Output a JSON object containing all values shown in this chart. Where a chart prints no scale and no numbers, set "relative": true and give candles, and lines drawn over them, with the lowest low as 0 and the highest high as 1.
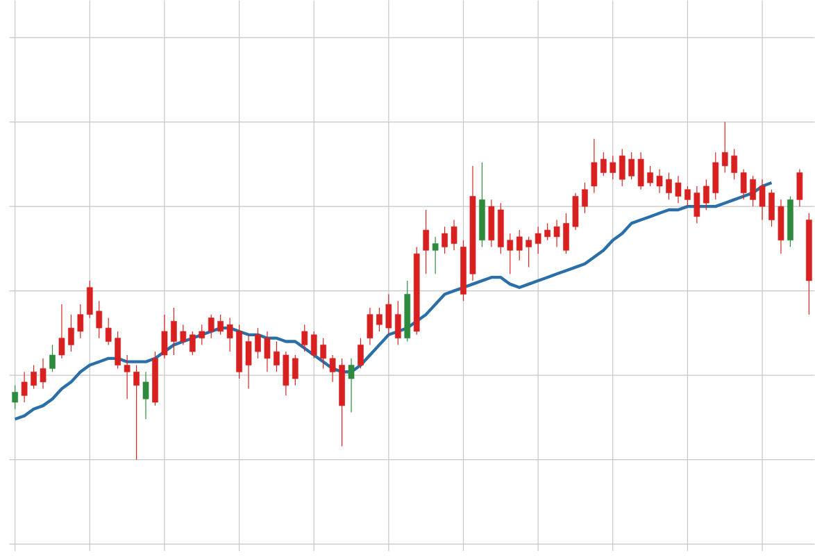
{
  "chart_data": {
    "type": "candlestick",
    "relative": true,
    "grid": true,
    "categories": [
      null,
      null,
      null,
      null,
      null,
      null,
      null,
      null,
      null,
      null,
      null,
      null,
      null,
      null,
      null,
      null,
      null,
      null,
      null,
      null,
      null,
      null,
      null,
      null,
      null,
      null,
      null,
      null,
      null,
      null,
      null,
      null,
      null,
      null,
      null,
      null,
      null,
      null,
      null,
      null,
      null,
      null,
      null,
      null,
      null,
      null,
      null,
      null,
      null,
      null,
      null,
      null,
      null,
      null,
      null,
      null,
      null,
      null,
      null,
      null,
      null,
      null,
      null,
      null,
      null,
      null,
      null,
      null,
      null,
      null,
      null,
      null,
      null,
      null,
      null,
      null,
      null,
      null,
      null,
      null,
      null,
      null,
      null,
      null,
      null,
      null
    ],
    "ohlc": [
      [
        0.17,
        0.22,
        0.15,
        0.2
      ],
      [
        0.23,
        0.26,
        0.17,
        0.19
      ],
      [
        0.26,
        0.28,
        0.21,
        0.22
      ],
      [
        0.27,
        0.3,
        0.21,
        0.23
      ],
      [
        0.27,
        0.34,
        0.26,
        0.31
      ],
      [
        0.36,
        0.46,
        0.3,
        0.31
      ],
      [
        0.39,
        0.43,
        0.32,
        0.34
      ],
      [
        0.43,
        0.46,
        0.36,
        0.38
      ],
      [
        0.51,
        0.53,
        0.42,
        0.43
      ],
      [
        0.44,
        0.47,
        0.36,
        0.39
      ],
      [
        0.39,
        0.42,
        0.34,
        0.35
      ],
      [
        0.36,
        0.38,
        0.27,
        0.28
      ],
      [
        0.28,
        0.31,
        0.18,
        0.26
      ],
      [
        0.26,
        0.28,
        0,
        0.22
      ],
      [
        0.18,
        0.26,
        0.12,
        0.23
      ],
      [
        0.3,
        0.32,
        0.16,
        0.17
      ],
      [
        0.38,
        0.43,
        0.3,
        0.31
      ],
      [
        0.41,
        0.45,
        0.31,
        0.35
      ],
      [
        0.38,
        0.4,
        0.34,
        0.35
      ],
      [
        0.37,
        0.38,
        0.31,
        0.32
      ],
      [
        0.38,
        0.4,
        0.34,
        0.36
      ],
      [
        0.42,
        0.43,
        0.36,
        0.38
      ],
      [
        0.41,
        0.43,
        0.37,
        0.38
      ],
      [
        0.4,
        0.42,
        0.32,
        0.36
      ],
      [
        0.38,
        0.4,
        0.24,
        0.26
      ],
      [
        0.35,
        0.37,
        0.21,
        0.28
      ],
      [
        0.37,
        0.39,
        0.3,
        0.32
      ],
      [
        0.36,
        0.38,
        0.26,
        0.3
      ],
      [
        0.32,
        0.35,
        0.26,
        0.28
      ],
      [
        0.31,
        0.32,
        0.19,
        0.22
      ],
      [
        0.3,
        0.31,
        0.22,
        0.24
      ],
      [
        0.38,
        0.4,
        0.32,
        0.34
      ],
      [
        0.37,
        0.38,
        0.3,
        0.31
      ],
      [
        0.34,
        0.36,
        0.27,
        0.3
      ],
      [
        0.3,
        0.31,
        0.23,
        0.26
      ],
      [
        0.28,
        0.3,
        0.04,
        0.16
      ],
      [
        0.24,
        0.3,
        0.14,
        0.28
      ],
      [
        0.34,
        0.36,
        0.27,
        0.28
      ],
      [
        0.43,
        0.45,
        0.34,
        0.36
      ],
      [
        0.43,
        0.45,
        0.38,
        0.4
      ],
      [
        0.46,
        0.49,
        0.37,
        0.39
      ],
      [
        0.43,
        0.47,
        0.34,
        0.36
      ],
      [
        0.36,
        0.53,
        0.35,
        0.49
      ],
      [
        0.61,
        0.63,
        0.37,
        0.38
      ],
      [
        0.68,
        0.74,
        0.55,
        0.62
      ],
      [
        0.62,
        0.66,
        0.55,
        0.64
      ],
      [
        0.67,
        0.69,
        0.61,
        0.63
      ],
      [
        0.69,
        0.71,
        0.62,
        0.64
      ],
      [
        0.63,
        0.65,
        0.47,
        0.49
      ],
      [
        0.78,
        0.87,
        0.53,
        0.55
      ],
      [
        0.65,
        0.88,
        0.63,
        0.77
      ],
      [
        0.75,
        0.77,
        0.63,
        0.65
      ],
      [
        0.74,
        0.76,
        0.61,
        0.63
      ],
      [
        0.65,
        0.67,
        0.55,
        0.62
      ],
      [
        0.66,
        0.68,
        0.59,
        0.62
      ],
      [
        0.65,
        0.66,
        0.57,
        0.63
      ],
      [
        0.67,
        0.69,
        0.61,
        0.64
      ],
      [
        0.68,
        0.7,
        0.65,
        0.66
      ],
      [
        0.69,
        0.71,
        0.63,
        0.66
      ],
      [
        0.7,
        0.73,
        0.61,
        0.62
      ],
      [
        0.78,
        0.79,
        0.68,
        0.69
      ],
      [
        0.8,
        0.82,
        0.73,
        0.75
      ],
      [
        0.88,
        0.95,
        0.79,
        0.81
      ],
      [
        0.89,
        0.91,
        0.84,
        0.85
      ],
      [
        0.88,
        0.9,
        0.83,
        0.85
      ],
      [
        0.9,
        0.92,
        0.81,
        0.83
      ],
      [
        0.89,
        0.91,
        0.83,
        0.84
      ],
      [
        0.89,
        0.91,
        0.8,
        0.81
      ],
      [
        0.85,
        0.87,
        0.81,
        0.82
      ],
      [
        0.84,
        0.86,
        0.79,
        0.81
      ],
      [
        0.83,
        0.85,
        0.77,
        0.79
      ],
      [
        0.82,
        0.84,
        0.76,
        0.78
      ],
      [
        0.8,
        0.81,
        0.75,
        0.77
      ],
      [
        0.79,
        0.81,
        0.7,
        0.72
      ],
      [
        0.81,
        0.83,
        0.74,
        0.76
      ],
      [
        0.88,
        0.91,
        0.77,
        0.79
      ],
      [
        0.91,
        1,
        0.85,
        0.87
      ],
      [
        0.9,
        0.92,
        0.83,
        0.85
      ],
      [
        0.85,
        0.86,
        0.77,
        0.79
      ],
      [
        0.83,
        0.84,
        0.75,
        0.77
      ],
      [
        0.81,
        0.83,
        0.71,
        0.75
      ],
      [
        0.79,
        0.8,
        0.69,
        0.71
      ],
      [
        0.75,
        0.77,
        0.61,
        0.65
      ],
      [
        0.65,
        0.78,
        0.63,
        0.77
      ],
      [
        0.85,
        0.86,
        0.75,
        0.77
      ],
      [
        0.71,
        0.73,
        0.43,
        0.53
      ]
    ],
    "colors": [
      "#2e8b3e",
      "#d92020",
      "#d92020",
      "#d92020",
      "#2e8b3e",
      "#d92020",
      "#d92020",
      "#d92020",
      "#d92020",
      "#d92020",
      "#d92020",
      "#d92020",
      "#d92020",
      "#d92020",
      "#2e8b3e",
      "#d92020",
      "#d92020",
      "#d92020",
      "#d92020",
      "#d92020",
      "#d92020",
      "#d92020",
      "#d92020",
      "#d92020",
      "#d92020",
      "#d92020",
      "#d92020",
      "#d92020",
      "#d92020",
      "#d92020",
      "#d92020",
      "#d92020",
      "#d92020",
      "#d92020",
      "#d92020",
      "#d92020",
      "#2e8b3e",
      "#d92020",
      "#d92020",
      "#d92020",
      "#d92020",
      "#d92020",
      "#2e8b3e",
      "#d92020",
      "#d92020",
      "#2e8b3e",
      "#d92020",
      "#d92020",
      "#d92020",
      "#d92020",
      "#2e8b3e",
      "#d92020",
      "#d92020",
      "#d92020",
      "#d92020",
      "#d92020",
      "#d92020",
      "#d92020",
      "#d92020",
      "#d92020",
      "#d92020",
      "#d92020",
      "#d92020",
      "#d92020",
      "#d92020",
      "#d92020",
      "#d92020",
      "#d92020",
      "#d92020",
      "#d92020",
      "#d92020",
      "#d92020",
      "#d92020",
      "#d92020",
      "#d92020",
      "#d92020",
      "#d92020",
      "#d92020",
      "#d92020",
      "#d92020",
      "#d92020",
      "#d92020",
      "#d92020",
      "#2e8b3e",
      "#d92020",
      "#d92020"
    ],
    "series": [
      {
        "type": "line",
        "color": "#2a6fa8",
        "values": [
          0.12,
          0.13,
          0.15,
          0.16,
          0.18,
          0.21,
          0.23,
          0.26,
          0.28,
          0.29,
          0.3,
          0.3,
          0.29,
          0.29,
          0.29,
          0.3,
          0.32,
          0.34,
          0.35,
          0.36,
          0.37,
          0.38,
          0.39,
          0.39,
          0.38,
          0.37,
          0.37,
          0.36,
          0.36,
          0.35,
          0.35,
          0.33,
          0.31,
          0.29,
          0.27,
          0.26,
          0.26,
          0.28,
          0.31,
          0.34,
          0.37,
          0.38,
          0.39,
          0.41,
          0.43,
          0.46,
          0.49,
          0.5,
          0.51,
          0.52,
          0.53,
          0.54,
          0.54,
          0.52,
          0.51,
          0.52,
          0.53,
          0.54,
          0.55,
          0.56,
          0.57,
          0.58,
          0.6,
          0.62,
          0.65,
          0.67,
          0.7,
          0.71,
          0.72,
          0.73,
          0.74,
          0.74,
          0.75,
          0.75,
          0.75,
          0.75,
          0.76,
          0.77,
          0.78,
          0.79,
          0.81,
          0.82,
          null,
          null,
          null,
          null
        ]
      }
    ]
  }
}
